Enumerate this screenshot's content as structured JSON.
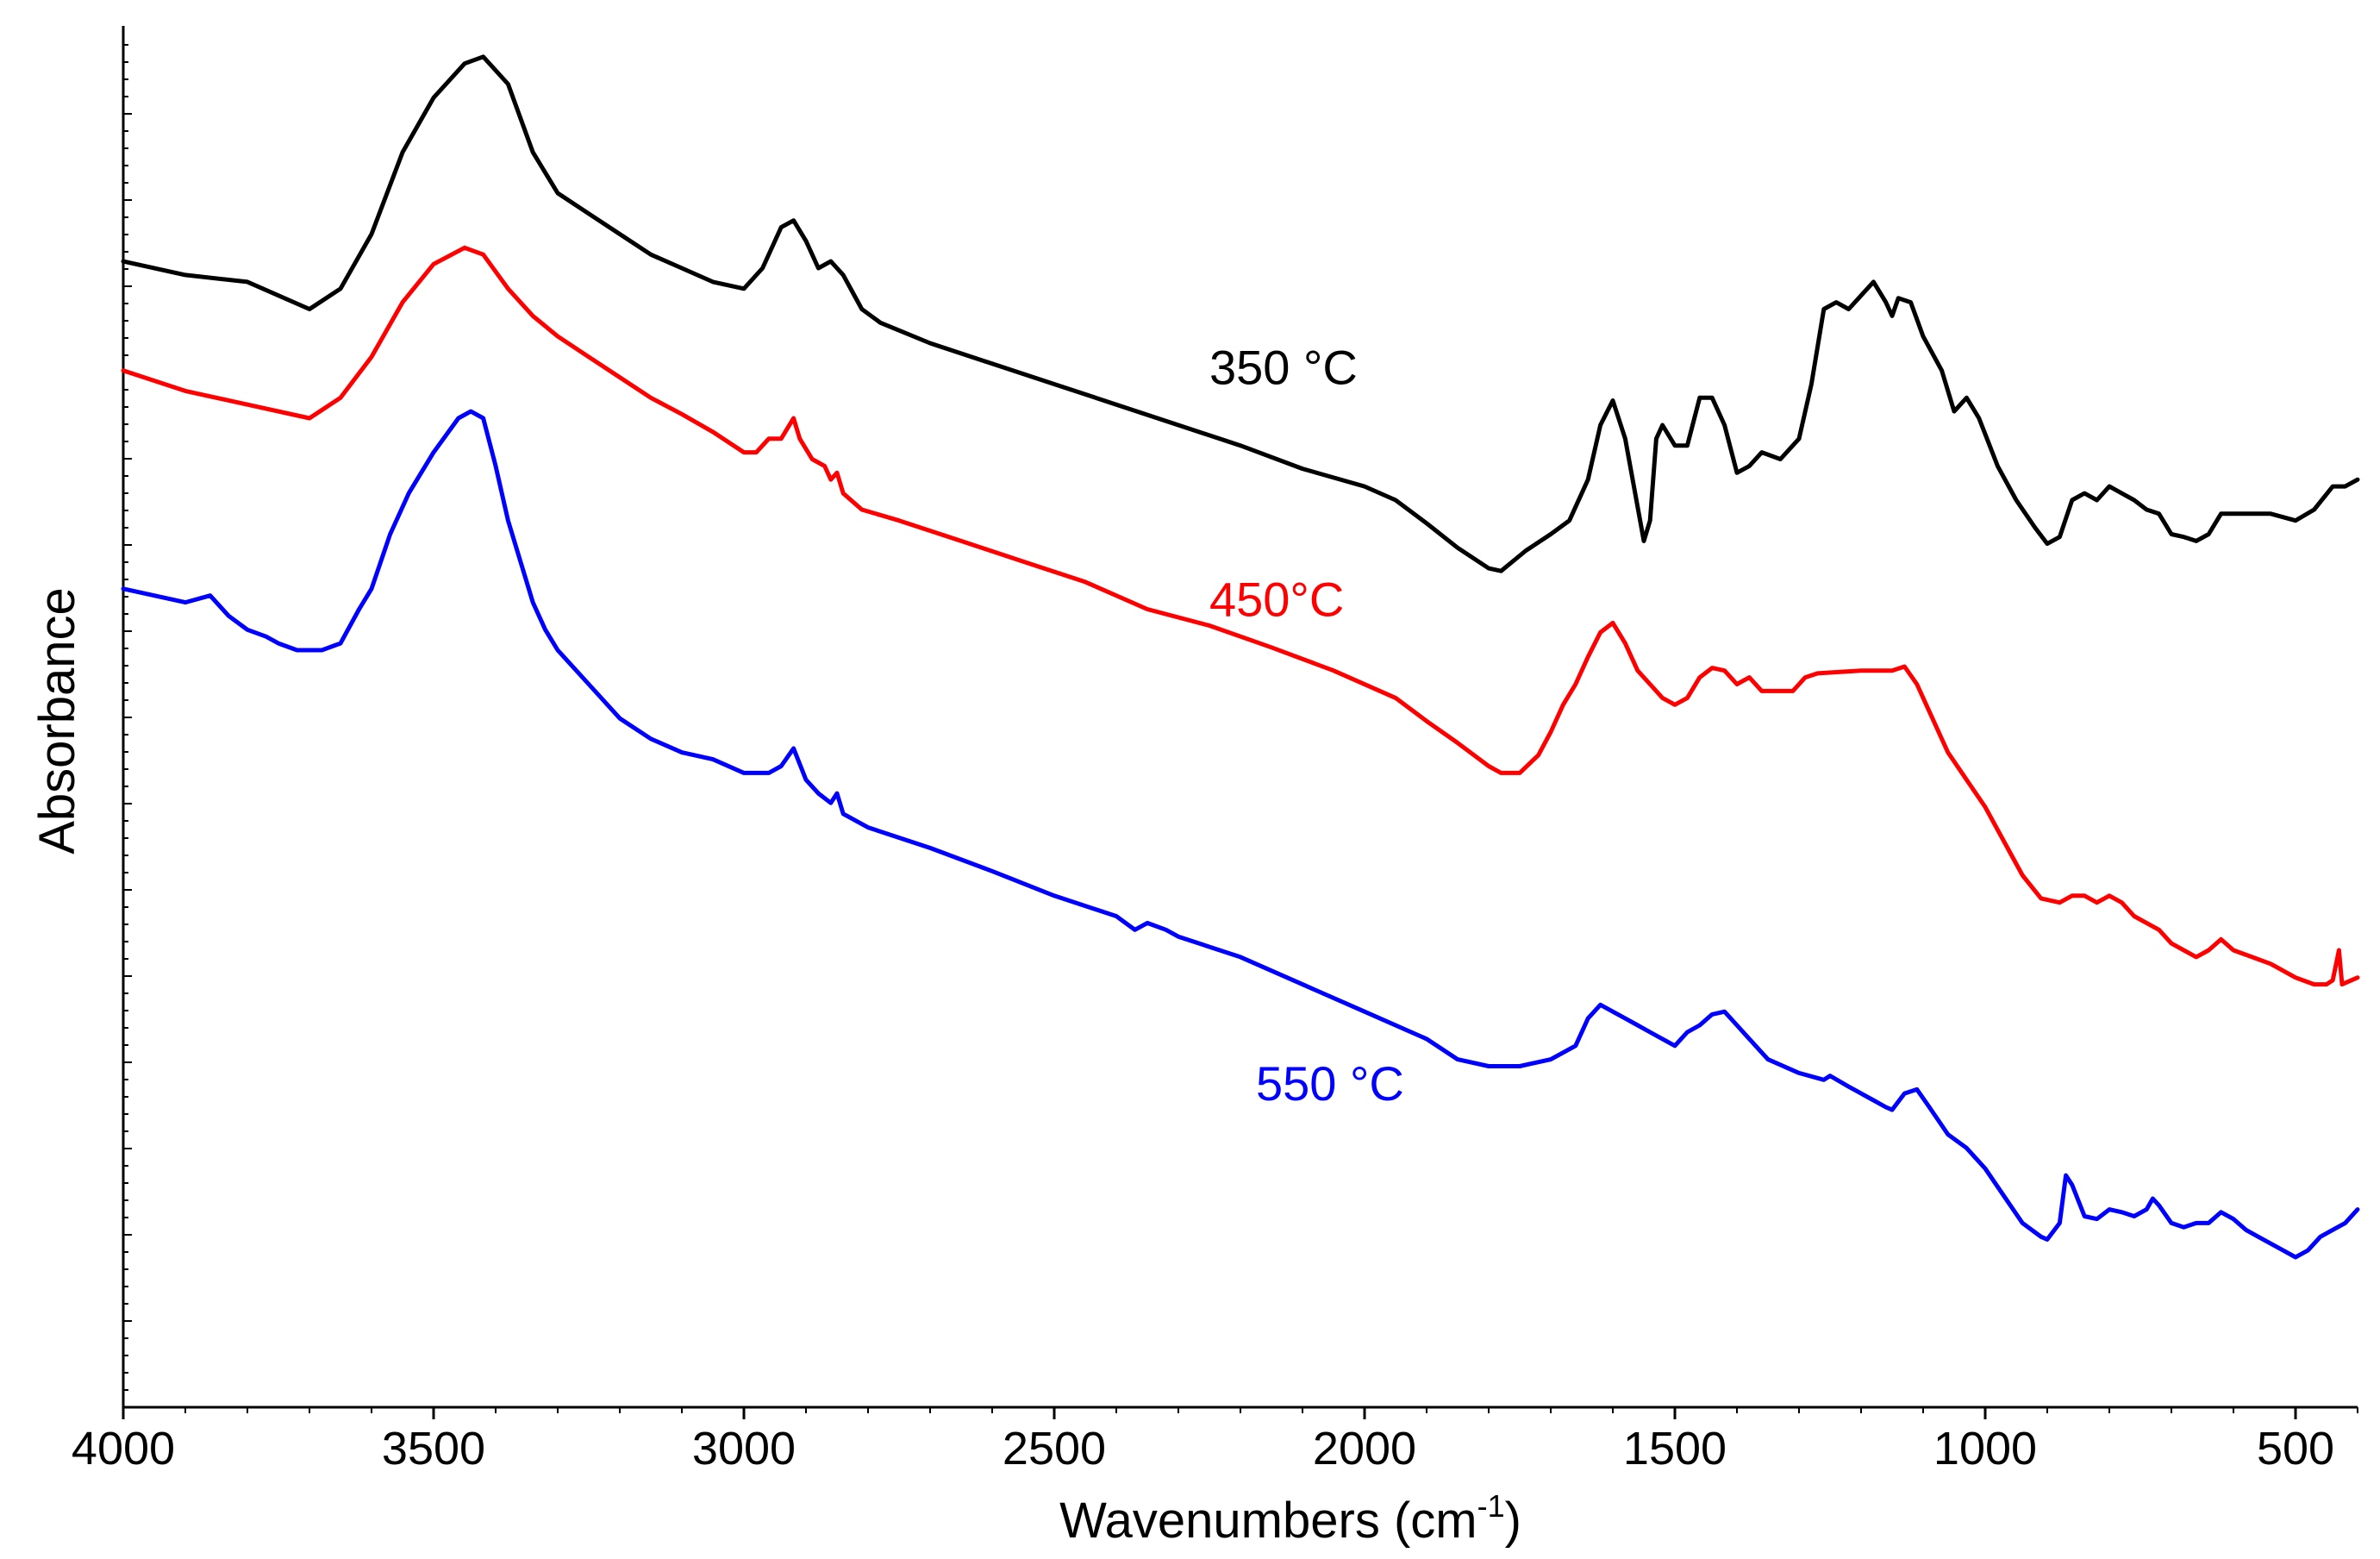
{
  "chart_data": {
    "type": "line",
    "title": "",
    "xlabel": "Wavenumbers (cm",
    "xlabel_sup": "-1",
    "xlabel_close": ")",
    "ylabel": "Absorbance",
    "xlim": [
      4000,
      400
    ],
    "ylim": [
      0,
      100
    ],
    "x_ticks": [
      4000,
      3500,
      3000,
      2500,
      2000,
      1500,
      1000,
      500
    ],
    "x_tick_labels": [
      "4000",
      "3500",
      "3000",
      "2500",
      "2000",
      "1500",
      "1000",
      "500"
    ],
    "grid": false,
    "series": [
      {
        "name": "350 °C",
        "color": "#000000",
        "label_at": [
          2250,
          75
        ],
        "points": [
          [
            4000,
            84
          ],
          [
            3900,
            83
          ],
          [
            3800,
            82.5
          ],
          [
            3700,
            80.5
          ],
          [
            3650,
            82
          ],
          [
            3600,
            86
          ],
          [
            3550,
            92
          ],
          [
            3500,
            96
          ],
          [
            3450,
            98.5
          ],
          [
            3420,
            99
          ],
          [
            3380,
            97
          ],
          [
            3340,
            92
          ],
          [
            3300,
            89
          ],
          [
            3250,
            87.5
          ],
          [
            3200,
            86
          ],
          [
            3150,
            84.5
          ],
          [
            3100,
            83.5
          ],
          [
            3050,
            82.5
          ],
          [
            3000,
            82
          ],
          [
            2970,
            83.5
          ],
          [
            2940,
            86.5
          ],
          [
            2920,
            87
          ],
          [
            2900,
            85.5
          ],
          [
            2880,
            83.5
          ],
          [
            2860,
            84
          ],
          [
            2840,
            83
          ],
          [
            2810,
            80.5
          ],
          [
            2780,
            79.5
          ],
          [
            2700,
            78
          ],
          [
            2600,
            76.5
          ],
          [
            2500,
            75
          ],
          [
            2400,
            73.5
          ],
          [
            2300,
            72
          ],
          [
            2200,
            70.5
          ],
          [
            2100,
            68.8
          ],
          [
            2000,
            67.5
          ],
          [
            1950,
            66.5
          ],
          [
            1900,
            64.8
          ],
          [
            1850,
            63
          ],
          [
            1800,
            61.5
          ],
          [
            1780,
            61.3
          ],
          [
            1740,
            62.8
          ],
          [
            1700,
            64
          ],
          [
            1670,
            65
          ],
          [
            1640,
            68
          ],
          [
            1620,
            72
          ],
          [
            1600,
            73.8
          ],
          [
            1580,
            71
          ],
          [
            1560,
            66
          ],
          [
            1550,
            63.5
          ],
          [
            1540,
            65
          ],
          [
            1530,
            71
          ],
          [
            1520,
            72
          ],
          [
            1500,
            70.5
          ],
          [
            1480,
            70.5
          ],
          [
            1460,
            74
          ],
          [
            1440,
            74
          ],
          [
            1420,
            72
          ],
          [
            1400,
            68.5
          ],
          [
            1380,
            69
          ],
          [
            1360,
            70
          ],
          [
            1330,
            69.5
          ],
          [
            1300,
            71
          ],
          [
            1280,
            75
          ],
          [
            1260,
            80.5
          ],
          [
            1240,
            81
          ],
          [
            1220,
            80.5
          ],
          [
            1200,
            81.5
          ],
          [
            1180,
            82.5
          ],
          [
            1160,
            81
          ],
          [
            1150,
            80
          ],
          [
            1140,
            81.3
          ],
          [
            1120,
            81
          ],
          [
            1100,
            78.5
          ],
          [
            1070,
            76
          ],
          [
            1050,
            73
          ],
          [
            1030,
            74
          ],
          [
            1010,
            72.5
          ],
          [
            980,
            69
          ],
          [
            950,
            66.5
          ],
          [
            920,
            64.5
          ],
          [
            900,
            63.3
          ],
          [
            880,
            63.8
          ],
          [
            860,
            66.5
          ],
          [
            840,
            67
          ],
          [
            820,
            66.5
          ],
          [
            800,
            67.5
          ],
          [
            780,
            67
          ],
          [
            760,
            66.5
          ],
          [
            740,
            65.8
          ],
          [
            720,
            65.5
          ],
          [
            700,
            64
          ],
          [
            680,
            63.8
          ],
          [
            660,
            63.5
          ],
          [
            640,
            64
          ],
          [
            620,
            65.5
          ],
          [
            580,
            65.5
          ],
          [
            540,
            65.5
          ],
          [
            500,
            65
          ],
          [
            470,
            65.8
          ],
          [
            440,
            67.5
          ],
          [
            420,
            67.5
          ],
          [
            400,
            68
          ]
        ]
      },
      {
        "name": "450°C",
        "color": "#ff0000",
        "label_at": [
          2250,
          58
        ],
        "points": [
          [
            4000,
            76
          ],
          [
            3900,
            74.5
          ],
          [
            3800,
            73.5
          ],
          [
            3700,
            72.5
          ],
          [
            3650,
            74
          ],
          [
            3600,
            77
          ],
          [
            3550,
            81
          ],
          [
            3500,
            83.8
          ],
          [
            3450,
            85
          ],
          [
            3420,
            84.5
          ],
          [
            3380,
            82
          ],
          [
            3340,
            80
          ],
          [
            3300,
            78.5
          ],
          [
            3250,
            77
          ],
          [
            3200,
            75.5
          ],
          [
            3150,
            74
          ],
          [
            3100,
            72.8
          ],
          [
            3050,
            71.5
          ],
          [
            3000,
            70
          ],
          [
            2980,
            70
          ],
          [
            2960,
            71
          ],
          [
            2940,
            71
          ],
          [
            2920,
            72.5
          ],
          [
            2910,
            71
          ],
          [
            2890,
            69.5
          ],
          [
            2870,
            69
          ],
          [
            2860,
            68
          ],
          [
            2850,
            68.5
          ],
          [
            2840,
            67
          ],
          [
            2810,
            65.8
          ],
          [
            2750,
            65
          ],
          [
            2650,
            63.5
          ],
          [
            2550,
            62
          ],
          [
            2450,
            60.5
          ],
          [
            2350,
            58.5
          ],
          [
            2250,
            57.3
          ],
          [
            2150,
            55.7
          ],
          [
            2050,
            54
          ],
          [
            1950,
            52
          ],
          [
            1900,
            50.3
          ],
          [
            1850,
            48.7
          ],
          [
            1800,
            47
          ],
          [
            1780,
            46.5
          ],
          [
            1750,
            46.5
          ],
          [
            1720,
            47.8
          ],
          [
            1700,
            49.5
          ],
          [
            1680,
            51.5
          ],
          [
            1660,
            53
          ],
          [
            1640,
            55
          ],
          [
            1620,
            56.8
          ],
          [
            1600,
            57.5
          ],
          [
            1580,
            56
          ],
          [
            1560,
            54
          ],
          [
            1540,
            53
          ],
          [
            1520,
            52
          ],
          [
            1500,
            51.5
          ],
          [
            1480,
            52
          ],
          [
            1460,
            53.5
          ],
          [
            1440,
            54.2
          ],
          [
            1420,
            54
          ],
          [
            1400,
            53
          ],
          [
            1380,
            53.5
          ],
          [
            1360,
            52.5
          ],
          [
            1340,
            52.5
          ],
          [
            1310,
            52.5
          ],
          [
            1290,
            53.5
          ],
          [
            1270,
            53.8
          ],
          [
            1200,
            54
          ],
          [
            1150,
            54
          ],
          [
            1130,
            54.3
          ],
          [
            1110,
            53
          ],
          [
            1090,
            51
          ],
          [
            1060,
            48
          ],
          [
            1030,
            46
          ],
          [
            1000,
            44
          ],
          [
            970,
            41.5
          ],
          [
            940,
            39
          ],
          [
            910,
            37.3
          ],
          [
            880,
            37
          ],
          [
            860,
            37.5
          ],
          [
            840,
            37.5
          ],
          [
            820,
            37
          ],
          [
            800,
            37.5
          ],
          [
            780,
            37
          ],
          [
            760,
            36
          ],
          [
            740,
            35.5
          ],
          [
            720,
            35
          ],
          [
            700,
            34
          ],
          [
            680,
            33.5
          ],
          [
            660,
            33
          ],
          [
            640,
            33.5
          ],
          [
            620,
            34.3
          ],
          [
            600,
            33.5
          ],
          [
            570,
            33
          ],
          [
            540,
            32.5
          ],
          [
            500,
            31.5
          ],
          [
            470,
            31
          ],
          [
            450,
            31
          ],
          [
            440,
            31.3
          ],
          [
            430,
            33.5
          ],
          [
            425,
            31
          ],
          [
            400,
            31.5
          ]
        ]
      },
      {
        "name": "550 °C",
        "color": "#0000ff",
        "label_at": [
          2175,
          22.5
        ],
        "points": [
          [
            4000,
            60
          ],
          [
            3950,
            59.5
          ],
          [
            3900,
            59
          ],
          [
            3860,
            59.5
          ],
          [
            3830,
            58
          ],
          [
            3800,
            57
          ],
          [
            3770,
            56.5
          ],
          [
            3750,
            56
          ],
          [
            3720,
            55.5
          ],
          [
            3680,
            55.5
          ],
          [
            3650,
            56
          ],
          [
            3620,
            58.5
          ],
          [
            3600,
            60
          ],
          [
            3570,
            64
          ],
          [
            3540,
            67
          ],
          [
            3500,
            70
          ],
          [
            3460,
            72.5
          ],
          [
            3440,
            73
          ],
          [
            3420,
            72.5
          ],
          [
            3400,
            69
          ],
          [
            3380,
            65
          ],
          [
            3360,
            62
          ],
          [
            3340,
            59
          ],
          [
            3320,
            57
          ],
          [
            3300,
            55.5
          ],
          [
            3250,
            53
          ],
          [
            3200,
            50.5
          ],
          [
            3150,
            49
          ],
          [
            3100,
            48
          ],
          [
            3050,
            47.5
          ],
          [
            3000,
            46.5
          ],
          [
            2960,
            46.5
          ],
          [
            2940,
            47
          ],
          [
            2920,
            48.3
          ],
          [
            2900,
            46
          ],
          [
            2880,
            45
          ],
          [
            2860,
            44.3
          ],
          [
            2850,
            45
          ],
          [
            2840,
            43.5
          ],
          [
            2800,
            42.5
          ],
          [
            2700,
            41
          ],
          [
            2600,
            39.3
          ],
          [
            2500,
            37.5
          ],
          [
            2400,
            36
          ],
          [
            2370,
            35
          ],
          [
            2350,
            35.5
          ],
          [
            2320,
            35
          ],
          [
            2300,
            34.5
          ],
          [
            2200,
            33
          ],
          [
            2100,
            31
          ],
          [
            2000,
            29
          ],
          [
            1900,
            27
          ],
          [
            1850,
            25.5
          ],
          [
            1800,
            25
          ],
          [
            1750,
            25
          ],
          [
            1700,
            25.5
          ],
          [
            1660,
            26.5
          ],
          [
            1640,
            28.5
          ],
          [
            1620,
            29.5
          ],
          [
            1600,
            29
          ],
          [
            1580,
            28.5
          ],
          [
            1560,
            28
          ],
          [
            1540,
            27.5
          ],
          [
            1520,
            27
          ],
          [
            1500,
            26.5
          ],
          [
            1480,
            27.5
          ],
          [
            1460,
            28
          ],
          [
            1440,
            28.8
          ],
          [
            1420,
            29
          ],
          [
            1400,
            28
          ],
          [
            1380,
            27
          ],
          [
            1350,
            25.5
          ],
          [
            1300,
            24.5
          ],
          [
            1260,
            24
          ],
          [
            1250,
            24.3
          ],
          [
            1220,
            23.5
          ],
          [
            1200,
            23
          ],
          [
            1180,
            22.5
          ],
          [
            1160,
            22
          ],
          [
            1150,
            21.8
          ],
          [
            1130,
            23
          ],
          [
            1110,
            23.3
          ],
          [
            1090,
            22
          ],
          [
            1060,
            20
          ],
          [
            1030,
            19
          ],
          [
            1000,
            17.5
          ],
          [
            970,
            15.5
          ],
          [
            940,
            13.5
          ],
          [
            910,
            12.5
          ],
          [
            900,
            12.3
          ],
          [
            880,
            13.5
          ],
          [
            870,
            17
          ],
          [
            860,
            16.3
          ],
          [
            840,
            14
          ],
          [
            820,
            13.8
          ],
          [
            800,
            14.5
          ],
          [
            780,
            14.3
          ],
          [
            760,
            14
          ],
          [
            740,
            14.5
          ],
          [
            730,
            15.3
          ],
          [
            720,
            14.8
          ],
          [
            700,
            13.5
          ],
          [
            680,
            13.2
          ],
          [
            660,
            13.5
          ],
          [
            640,
            13.5
          ],
          [
            620,
            14.3
          ],
          [
            600,
            13.8
          ],
          [
            580,
            13
          ],
          [
            560,
            12.5
          ],
          [
            540,
            12
          ],
          [
            520,
            11.5
          ],
          [
            500,
            11
          ],
          [
            480,
            11.5
          ],
          [
            460,
            12.5
          ],
          [
            440,
            13
          ],
          [
            420,
            13.5
          ],
          [
            400,
            14.5
          ]
        ]
      }
    ]
  }
}
